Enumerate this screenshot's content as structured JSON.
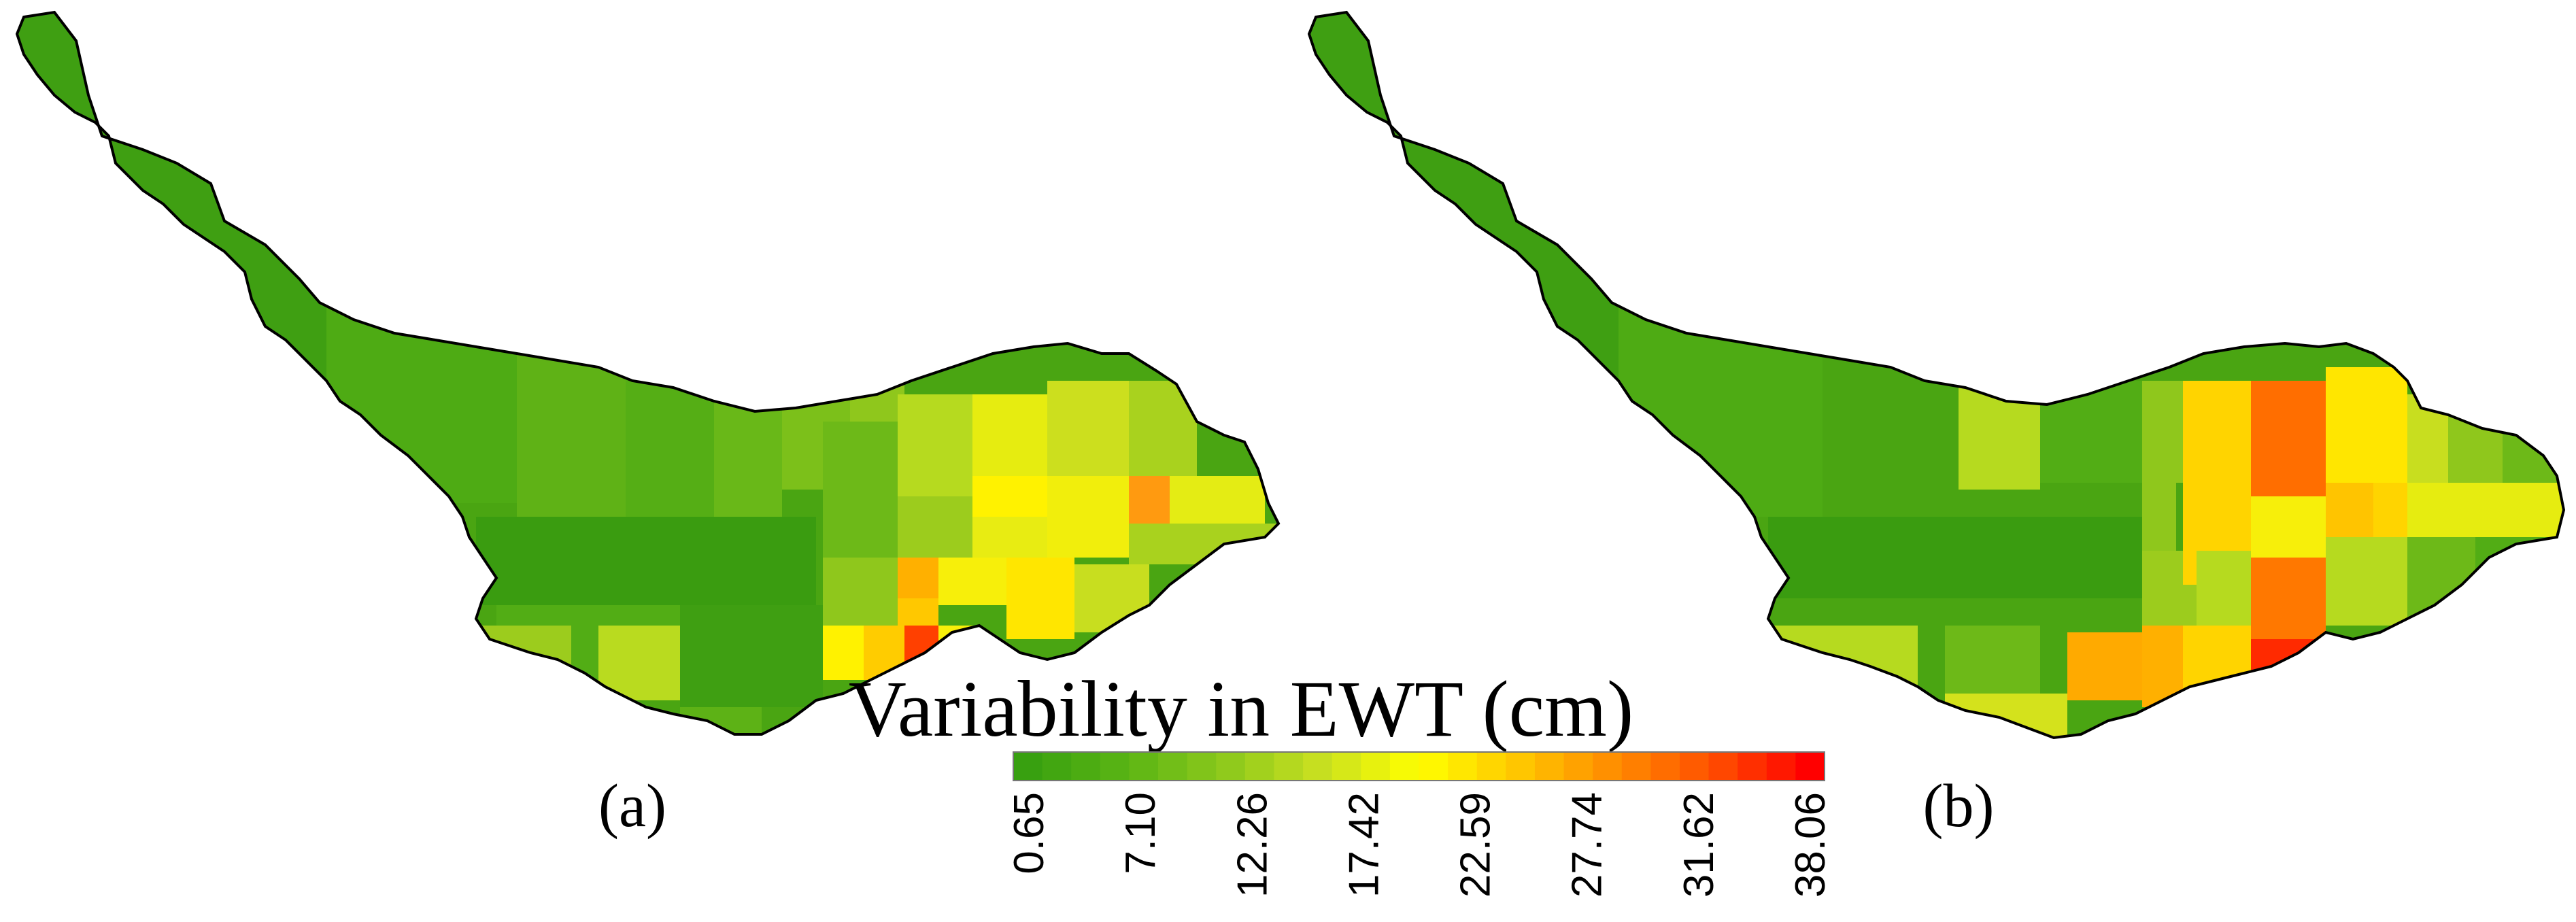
{
  "figure": {
    "panels": [
      {
        "label": "(a)"
      },
      {
        "label": "(b)"
      }
    ],
    "legend": {
      "title": "Variability in EWT (cm)",
      "ticks": [
        "0.65",
        "7.10",
        "12.26",
        "17.42",
        "22.59",
        "27.74",
        "31.62",
        "38.06"
      ],
      "min": 0.65,
      "max": 38.06,
      "color_stops": [
        "#38a010",
        "#5ab414",
        "#8cc81c",
        "#c8e020",
        "#ffff00",
        "#ffc800",
        "#ff8c00",
        "#ff5000",
        "#ff0000"
      ]
    }
  }
}
